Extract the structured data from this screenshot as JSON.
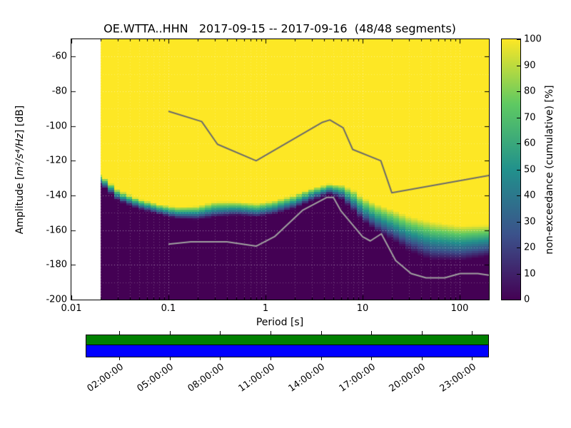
{
  "title": "OE.WTTA..HHN   2017-09-15 -- 2017-09-16  (48/48 segments)",
  "ylabel": {
    "pre": "Amplitude [",
    "math": "m²/s⁴/Hz",
    "post": "] [dB]"
  },
  "xlabel": "Period [s]",
  "colorbar_label": "non-exceedance (cumulative) [%]",
  "chart_data": {
    "type": "heatmap",
    "title": "OE.WTTA..HHN   2017-09-15 -- 2017-09-16  (48/48 segments)",
    "x_axis": {
      "label": "Period [s]",
      "scale": "log",
      "range": [
        0.01,
        200
      ],
      "ticks": [
        {
          "value": 0.01,
          "label": "0.01"
        },
        {
          "value": 0.1,
          "label": "0.1"
        },
        {
          "value": 1,
          "label": "1"
        },
        {
          "value": 10,
          "label": "10"
        },
        {
          "value": 100,
          "label": "100"
        }
      ]
    },
    "y_axis": {
      "label": "Amplitude [m2/s4/Hz] [dB]",
      "range": [
        -200,
        -50
      ],
      "ticks": [
        -60,
        -80,
        -100,
        -120,
        -140,
        -160,
        -180,
        -200
      ]
    },
    "colorbar": {
      "label": "non-exceedance (cumulative) [%]",
      "range": [
        0,
        100
      ],
      "ticks": [
        0,
        10,
        20,
        30,
        40,
        50,
        60,
        70,
        80,
        90,
        100
      ],
      "colormap": "viridis",
      "stops": [
        {
          "t": 0,
          "color": "#440154"
        },
        {
          "t": 0.25,
          "color": "#3b528b"
        },
        {
          "t": 0.5,
          "color": "#21918c"
        },
        {
          "t": 0.75,
          "color": "#5ec962"
        },
        {
          "t": 1,
          "color": "#fde725"
        }
      ]
    },
    "grid": {
      "color": "#ffffff",
      "style": "dotted"
    },
    "data_period_range": [
      0.02,
      200
    ],
    "nonexceedance_boundary": {
      "note": "transition from 100% (top, yellow) to 0% (bottom, dark) vs period; center and half-width in dB",
      "periods": [
        0.02,
        0.03,
        0.05,
        0.08,
        0.12,
        0.2,
        0.3,
        0.5,
        0.8,
        1.2,
        2,
        3,
        4.5,
        6,
        8,
        10,
        14,
        20,
        30,
        50,
        100,
        200
      ],
      "center_db": [
        -131,
        -140,
        -145,
        -148,
        -150,
        -150,
        -148,
        -147.5,
        -148.5,
        -147,
        -143.5,
        -139.5,
        -136.5,
        -138,
        -143,
        -148,
        -153,
        -157,
        -162,
        -166,
        -167.5,
        -166
      ],
      "halfwidth_db": [
        3,
        3,
        3,
        3,
        3.5,
        4,
        4.5,
        4,
        4,
        4,
        4,
        3.5,
        3,
        4,
        6,
        7,
        8,
        9,
        10,
        11,
        10,
        9
      ]
    },
    "noise_models": {
      "nhnm": {
        "name": "high noise model line",
        "color": "#6b6b6b",
        "periods": [
          0.1,
          0.22,
          0.32,
          0.8,
          3.8,
          4.6,
          6.3,
          7.9,
          15.4,
          20,
          200
        ],
        "db": [
          -91.5,
          -97.4,
          -110.5,
          -120,
          -98,
          -96.5,
          -101,
          -113.5,
          -120,
          -138.5,
          -128.5
        ]
      },
      "nlnm": {
        "name": "low noise model line",
        "color": "#a0a0a0",
        "periods": [
          0.1,
          0.17,
          0.4,
          0.8,
          1.24,
          2.4,
          4.3,
          5,
          6,
          10,
          12,
          15.6,
          21.9,
          31.6,
          45,
          70,
          101,
          154,
          200
        ],
        "db": [
          -168,
          -166.7,
          -166.7,
          -169.2,
          -163.7,
          -148.6,
          -141.1,
          -141.1,
          -149,
          -163.8,
          -166.2,
          -162.1,
          -177.5,
          -185,
          -187.5,
          -187.5,
          -185,
          -185,
          -185.9
        ]
      }
    },
    "coverage": {
      "bar_colors": [
        "#008000",
        "#0000ff"
      ],
      "time_range_hours": [
        0,
        24
      ],
      "tick_hours": [
        2,
        5,
        8,
        11,
        14,
        17,
        20,
        23
      ],
      "time_labels": [
        "02:00:00",
        "05:00:00",
        "08:00:00",
        "11:00:00",
        "14:00:00",
        "17:00:00",
        "20:00:00",
        "23:00:00"
      ]
    }
  }
}
